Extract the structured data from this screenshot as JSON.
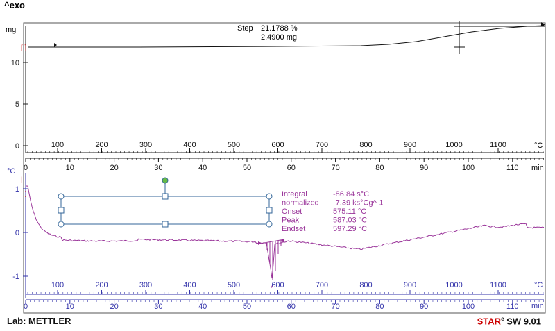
{
  "header": {
    "exo_label": "^exo"
  },
  "footer": {
    "lab": "Lab: METTLER",
    "brand_a": "STAR",
    "brand_sup": "e",
    "brand_b": " SW 9.01"
  },
  "colors": {
    "panel_bg": "#ffffff",
    "frame": "#555555",
    "tga_curve": "#111111",
    "dsc_curve": "#993399",
    "dsc_axis": "#3333aa",
    "selection": "#336699",
    "handle_green": "#66bb44",
    "red_marker": "#cc0000"
  },
  "tga_panel": {
    "y_unit": "mg",
    "y_ticks": [
      "10",
      "5",
      "0"
    ],
    "temp_unit": "°C",
    "temp_ticks": [
      "100",
      "200",
      "300",
      "400",
      "500",
      "600",
      "700",
      "800",
      "900",
      "1000",
      "1100"
    ],
    "time_unit": "min",
    "time_ticks": [
      "0",
      "10",
      "20",
      "30",
      "40",
      "50",
      "60",
      "70",
      "80",
      "90",
      "100",
      "110"
    ],
    "step_label": "Step",
    "step_percent": "21.1788 %",
    "step_mass": "2.4900 mg"
  },
  "dsc_panel": {
    "y_unit": "°C",
    "y_ticks": [
      "1",
      "0",
      "-1"
    ],
    "temp_unit": "°C",
    "temp_ticks": [
      "100",
      "200",
      "300",
      "400",
      "500",
      "600",
      "700",
      "800",
      "900",
      "1000",
      "1100"
    ],
    "time_unit": "min",
    "time_ticks": [
      "0",
      "10",
      "20",
      "30",
      "40",
      "50",
      "60",
      "70",
      "80",
      "90",
      "100",
      "110"
    ],
    "results": [
      {
        "label": "Integral",
        "value": "-86.84 s°C"
      },
      {
        "label": "  normalized",
        "value": "-7.39 ks°Cg^-1"
      },
      {
        "label": "Onset",
        "value": "575.11 °C"
      },
      {
        "label": "Peak",
        "value": "587.03 °C"
      },
      {
        "label": "Endset",
        "value": "597.29 °C"
      }
    ]
  }
}
